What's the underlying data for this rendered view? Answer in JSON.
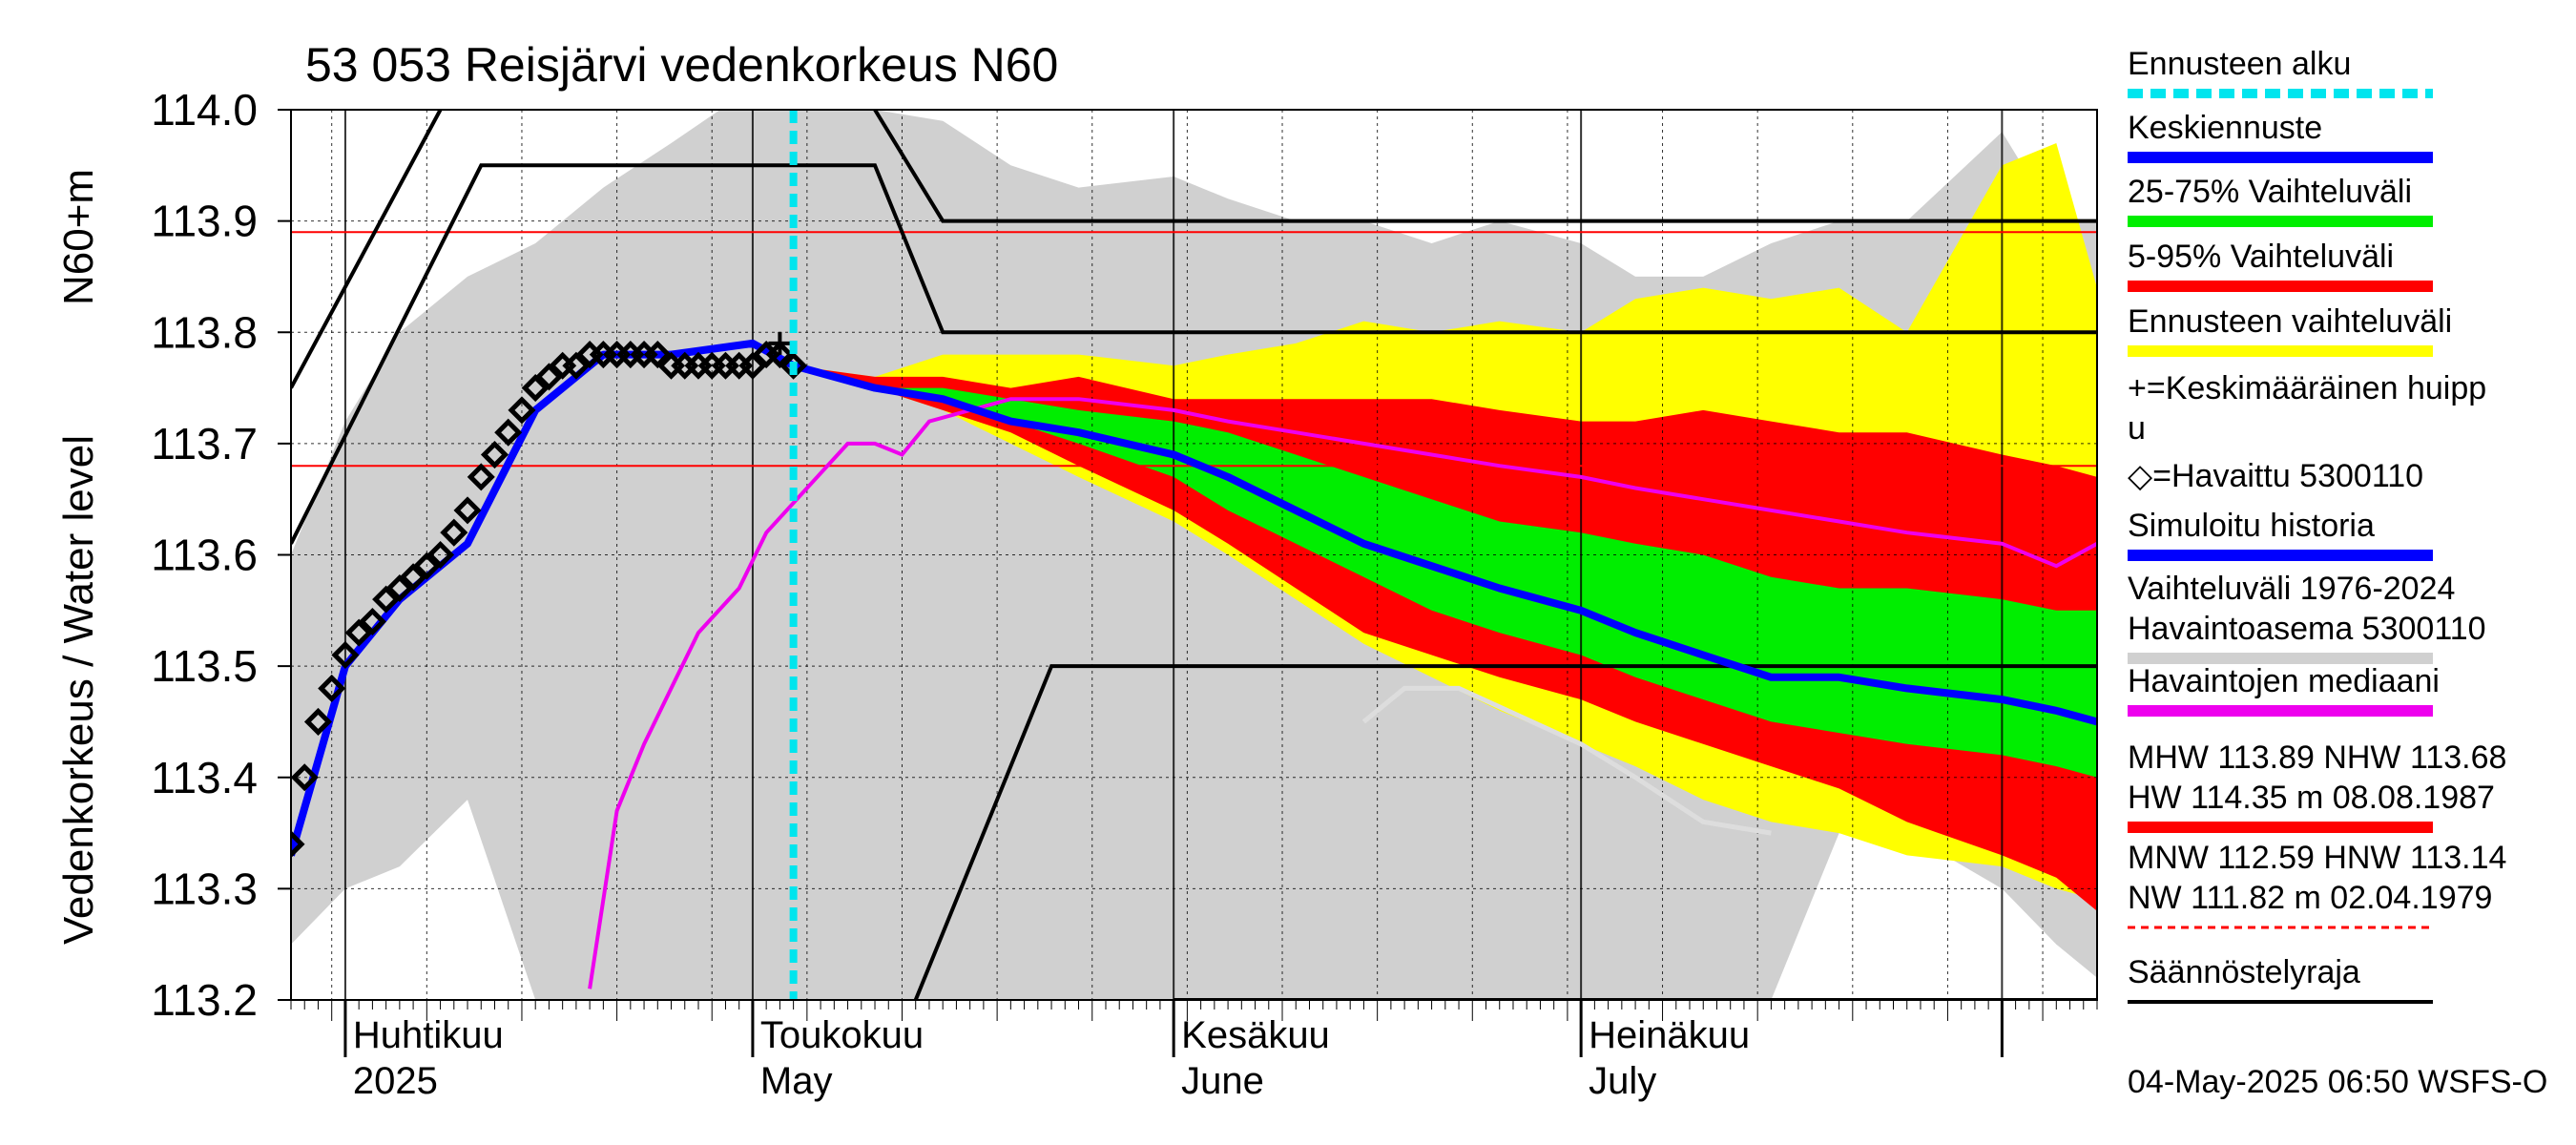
{
  "chart_data": {
    "type": "line",
    "title": "53 053 Reisjärvi vedenkorkeus N60",
    "ylabel_main": "Vedenkorkeus / Water level",
    "ylabel_unit": "N60+m",
    "ylim": [
      113.2,
      114.0
    ],
    "y_ticks": [
      "113.2",
      "113.3",
      "113.4",
      "113.5",
      "113.6",
      "113.7",
      "113.8",
      "113.9",
      "114.0"
    ],
    "xlim": [
      "2025-03-28",
      "2025-08-08"
    ],
    "x_month_labels": [
      {
        "date": "2025-04-01",
        "fi": "Huhtikuu",
        "en": "2025"
      },
      {
        "date": "2025-05-01",
        "fi": "Toukokuu",
        "en": "May"
      },
      {
        "date": "2025-06-01",
        "fi": "Kesäkuu",
        "en": "June"
      },
      {
        "date": "2025-07-01",
        "fi": "Heinäkuu",
        "en": "July"
      }
    ],
    "forecast_start": "2025-05-04",
    "timestamp": "04-May-2025 06:50 WSFS-O",
    "reference_lines": [
      {
        "label": "MHW",
        "value": 113.89
      },
      {
        "label": "NHW",
        "value": 113.68
      }
    ],
    "regulation_limits": [
      {
        "name": "upper",
        "points": [
          [
            "2025-03-28",
            113.61
          ],
          [
            "2025-04-11",
            113.95
          ],
          [
            "2025-05-10",
            113.95
          ],
          [
            "2025-05-15",
            113.8
          ],
          [
            "2025-08-08",
            113.8
          ]
        ]
      },
      {
        "name": "upper-steep",
        "points": [
          [
            "2025-03-28",
            113.75
          ],
          [
            "2025-04-08",
            114.0
          ]
        ]
      },
      {
        "name": "upper-high",
        "points": [
          [
            "2025-05-10",
            114.0
          ],
          [
            "2025-05-15",
            113.9
          ],
          [
            "2025-08-08",
            113.9
          ]
        ]
      },
      {
        "name": "lower",
        "points": [
          [
            "2025-05-13",
            113.2
          ],
          [
            "2025-05-23",
            113.5
          ],
          [
            "2025-08-08",
            113.5
          ]
        ]
      },
      {
        "name": "lower-floor",
        "points": [
          [
            "2025-06-01",
            113.2
          ],
          [
            "2025-08-08",
            113.2
          ]
        ]
      }
    ],
    "series": [
      {
        "name": "Havaittu 5300110",
        "dates": [
          "2025-03-28",
          "2025-03-29",
          "2025-03-30",
          "2025-03-31",
          "2025-04-01",
          "2025-04-02",
          "2025-04-03",
          "2025-04-04",
          "2025-04-05",
          "2025-04-06",
          "2025-04-07",
          "2025-04-08",
          "2025-04-09",
          "2025-04-10",
          "2025-04-11",
          "2025-04-12",
          "2025-04-13",
          "2025-04-14",
          "2025-04-15",
          "2025-04-16",
          "2025-04-17",
          "2025-04-18",
          "2025-04-19",
          "2025-04-20",
          "2025-04-21",
          "2025-04-22",
          "2025-04-23",
          "2025-04-24",
          "2025-04-25",
          "2025-04-26",
          "2025-04-27",
          "2025-04-28",
          "2025-04-29",
          "2025-04-30",
          "2025-05-01",
          "2025-05-02",
          "2025-05-03",
          "2025-05-04"
        ],
        "values": [
          113.34,
          113.4,
          113.45,
          113.48,
          113.51,
          113.53,
          113.54,
          113.56,
          113.57,
          113.58,
          113.59,
          113.6,
          113.62,
          113.64,
          113.67,
          113.69,
          113.71,
          113.73,
          113.75,
          113.76,
          113.77,
          113.77,
          113.78,
          113.78,
          113.78,
          113.78,
          113.78,
          113.78,
          113.77,
          113.77,
          113.77,
          113.77,
          113.77,
          113.77,
          113.77,
          113.78,
          113.78,
          113.77
        ]
      },
      {
        "name": "Simuloitu historia / Keskiennuste",
        "dates": [
          "2025-03-28",
          "2025-04-01",
          "2025-04-05",
          "2025-04-10",
          "2025-04-15",
          "2025-04-20",
          "2025-04-25",
          "2025-05-01",
          "2025-05-04",
          "2025-05-10",
          "2025-05-15",
          "2025-05-20",
          "2025-05-25",
          "2025-06-01",
          "2025-06-05",
          "2025-06-10",
          "2025-06-15",
          "2025-06-20",
          "2025-06-25",
          "2025-07-01",
          "2025-07-05",
          "2025-07-10",
          "2025-07-15",
          "2025-07-20",
          "2025-07-25",
          "2025-08-01",
          "2025-08-05",
          "2025-08-08"
        ],
        "values": [
          113.33,
          113.5,
          113.56,
          113.61,
          113.73,
          113.78,
          113.78,
          113.79,
          113.77,
          113.75,
          113.74,
          113.72,
          113.71,
          113.69,
          113.67,
          113.64,
          113.61,
          113.59,
          113.57,
          113.55,
          113.53,
          113.51,
          113.49,
          113.49,
          113.48,
          113.47,
          113.46,
          113.45
        ]
      },
      {
        "name": "Havaintojen mediaani",
        "dates": [
          "2025-04-19",
          "2025-04-21",
          "2025-04-23",
          "2025-04-25",
          "2025-04-27",
          "2025-04-30",
          "2025-05-02",
          "2025-05-05",
          "2025-05-08",
          "2025-05-10",
          "2025-05-12",
          "2025-05-14",
          "2025-05-17",
          "2025-05-20",
          "2025-05-25",
          "2025-06-01",
          "2025-06-05",
          "2025-06-10",
          "2025-06-15",
          "2025-06-20",
          "2025-06-25",
          "2025-07-01",
          "2025-07-05",
          "2025-07-10",
          "2025-07-15",
          "2025-07-20",
          "2025-07-25",
          "2025-08-01",
          "2025-08-05",
          "2025-08-08"
        ],
        "values": [
          113.21,
          113.37,
          113.43,
          113.48,
          113.53,
          113.57,
          113.62,
          113.66,
          113.7,
          113.7,
          113.69,
          113.72,
          113.73,
          113.74,
          113.74,
          113.73,
          113.72,
          113.71,
          113.7,
          113.69,
          113.68,
          113.67,
          113.66,
          113.65,
          113.64,
          113.63,
          113.62,
          113.61,
          113.59,
          113.61
        ]
      },
      {
        "name": "Keskimääräinen huippu",
        "dates": [
          "2025-05-03"
        ],
        "values": [
          113.79
        ]
      }
    ],
    "bands": {
      "dates": [
        "2025-05-04",
        "2025-05-10",
        "2025-05-15",
        "2025-05-20",
        "2025-05-25",
        "2025-06-01",
        "2025-06-05",
        "2025-06-10",
        "2025-06-15",
        "2025-06-20",
        "2025-06-25",
        "2025-07-01",
        "2025-07-05",
        "2025-07-10",
        "2025-07-15",
        "2025-07-20",
        "2025-07-25",
        "2025-08-01",
        "2025-08-05",
        "2025-08-08"
      ],
      "ennusteen_low": [
        113.77,
        113.75,
        113.73,
        113.7,
        113.67,
        113.63,
        113.6,
        113.56,
        113.52,
        113.49,
        113.46,
        113.43,
        113.41,
        113.38,
        113.36,
        113.35,
        113.33,
        113.32,
        113.3,
        113.29
      ],
      "ennusteen_high": [
        113.77,
        113.76,
        113.78,
        113.78,
        113.78,
        113.77,
        113.78,
        113.79,
        113.81,
        113.8,
        113.81,
        113.8,
        113.83,
        113.84,
        113.83,
        113.84,
        113.8,
        113.95,
        113.97,
        113.84
      ],
      "p5": [
        113.77,
        113.75,
        113.73,
        113.71,
        113.68,
        113.64,
        113.61,
        113.57,
        113.53,
        113.51,
        113.49,
        113.47,
        113.45,
        113.43,
        113.41,
        113.39,
        113.36,
        113.33,
        113.31,
        113.28
      ],
      "p95": [
        113.77,
        113.76,
        113.76,
        113.75,
        113.76,
        113.74,
        113.74,
        113.74,
        113.74,
        113.74,
        113.73,
        113.72,
        113.72,
        113.73,
        113.72,
        113.71,
        113.71,
        113.69,
        113.68,
        113.67
      ],
      "p25": [
        113.77,
        113.75,
        113.74,
        113.72,
        113.7,
        113.67,
        113.64,
        113.61,
        113.58,
        113.55,
        113.53,
        113.51,
        113.49,
        113.47,
        113.45,
        113.44,
        113.43,
        113.42,
        113.41,
        113.4
      ],
      "p75": [
        113.77,
        113.75,
        113.75,
        113.74,
        113.73,
        113.72,
        113.71,
        113.69,
        113.67,
        113.65,
        113.63,
        113.62,
        113.61,
        113.6,
        113.58,
        113.57,
        113.57,
        113.56,
        113.55,
        113.55
      ]
    },
    "historical_range": {
      "name": "Vaihteluväli 1976-2024 Havaintoasema 5300110",
      "dates": [
        "2025-03-28",
        "2025-04-01",
        "2025-04-05",
        "2025-04-10",
        "2025-04-15",
        "2025-04-20",
        "2025-04-25",
        "2025-05-01",
        "2025-05-05",
        "2025-05-10",
        "2025-05-15",
        "2025-05-20",
        "2025-05-25",
        "2025-06-01",
        "2025-06-05",
        "2025-06-10",
        "2025-06-15",
        "2025-06-20",
        "2025-06-25",
        "2025-07-01",
        "2025-07-05",
        "2025-07-10",
        "2025-07-15",
        "2025-07-20",
        "2025-07-25",
        "2025-08-01",
        "2025-08-05",
        "2025-08-08"
      ],
      "low": [
        113.25,
        113.3,
        113.32,
        113.38,
        113.2,
        113.2,
        113.2,
        113.2,
        113.2,
        113.2,
        113.2,
        113.2,
        113.2,
        113.2,
        113.2,
        113.2,
        113.2,
        113.2,
        113.2,
        113.2,
        113.2,
        113.2,
        113.2,
        113.35,
        113.35,
        113.3,
        113.25,
        113.22
      ],
      "high": [
        113.6,
        113.72,
        113.8,
        113.85,
        113.88,
        113.93,
        113.97,
        114.02,
        114.0,
        114.0,
        113.99,
        113.95,
        113.93,
        113.94,
        113.92,
        113.9,
        113.9,
        113.88,
        113.9,
        113.88,
        113.85,
        113.85,
        113.88,
        113.9,
        113.9,
        113.98,
        113.9,
        113.9
      ]
    },
    "historical_low_line": {
      "dates": [
        "2025-06-15",
        "2025-06-18",
        "2025-06-22",
        "2025-07-01",
        "2025-07-05",
        "2025-07-10",
        "2025-07-15"
      ],
      "values": [
        113.45,
        113.48,
        113.48,
        113.43,
        113.4,
        113.36,
        113.35
      ]
    }
  },
  "legend": [
    {
      "label": "Ennusteen alku",
      "color": "#00e5ee",
      "style": "dashed"
    },
    {
      "label": "Keskiennuste",
      "color": "#0000ff",
      "style": "line"
    },
    {
      "label": "25-75% Vaihteluväli",
      "color": "#00ee00",
      "style": "line"
    },
    {
      "label": "5-95% Vaihteluväli",
      "color": "#ff0000",
      "style": "line"
    },
    {
      "label": "Ennusteen vaihteluväli",
      "color": "#ffff00",
      "style": "line"
    },
    {
      "label": "+=Keskimääräinen huipp",
      "label2": "u",
      "color": "#000000",
      "style": "none"
    },
    {
      "label": "◇=Havaittu 5300110",
      "color": "#000000",
      "style": "none"
    },
    {
      "label": "Simuloitu historia",
      "color": "#0000ff",
      "style": "line"
    },
    {
      "label": "Vaihteluväli 1976-2024",
      "label2": " Havaintoasema 5300110",
      "color": "#d0d0d0",
      "style": "line"
    },
    {
      "label": "Havaintojen mediaani",
      "color": "#ee00ee",
      "style": "line"
    },
    {
      "label": "MHW 113.89 NHW 113.68",
      "label2": "HW 114.35 m 08.08.1987",
      "color": "#ff0000",
      "style": "line"
    },
    {
      "label": "MNW 112.59 HNW 113.14",
      "label2": "NW 111.82 m 02.04.1979",
      "color": "#ff0000",
      "style": "dashed"
    },
    {
      "label": "Säännöstelyraja",
      "color": "#000000",
      "style": "line"
    }
  ],
  "colors": {
    "grey_range": "#d0d0d0",
    "yellow": "#ffff00",
    "red": "#ff0000",
    "green": "#00ee00",
    "blue": "#0000ff",
    "magenta": "#ee00ee",
    "cyan": "#00e5ee"
  }
}
